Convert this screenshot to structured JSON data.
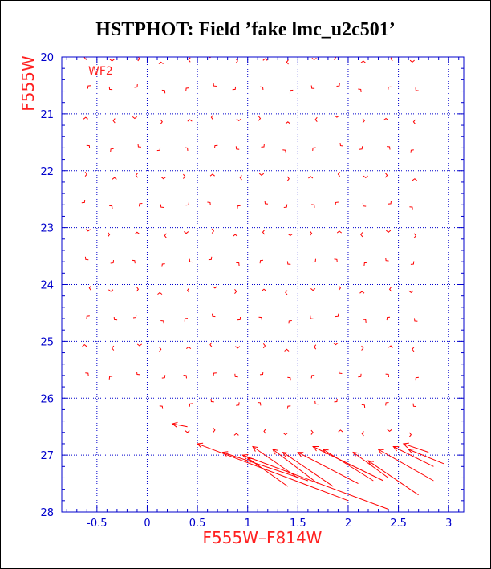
{
  "chart_data": {
    "type": "scatter",
    "title": "HSTPHOT: Field ’fake lmc_u2c501’",
    "xlabel": "F555W–F814W",
    "ylabel": "F555W",
    "panel_label": "WF2",
    "xlim": [
      -0.85,
      3.15
    ],
    "ylim": [
      28,
      20
    ],
    "x_ticks": [
      -0.5,
      0,
      0.5,
      1,
      1.5,
      2,
      2.5,
      3
    ],
    "x_tick_labels": [
      "-0.5",
      "0",
      "0.5",
      "1",
      "1.5",
      "2",
      "2.5",
      "3"
    ],
    "y_ticks": [
      20,
      21,
      22,
      23,
      24,
      25,
      26,
      27,
      28
    ],
    "y_tick_labels": [
      "20",
      "21",
      "22",
      "23",
      "24",
      "25",
      "26",
      "27",
      "28"
    ],
    "grid": true,
    "marker": "arrow",
    "colors": {
      "data": "#ff0000",
      "axes": "#0000cc",
      "grid": "#0000cc",
      "label": "#ff2020",
      "title": "#000000"
    },
    "grid_x": [
      -0.6,
      -0.35,
      -0.1,
      0.15,
      0.4,
      0.65,
      0.9,
      1.15,
      1.4,
      1.65,
      1.9,
      2.15,
      2.4,
      2.65
    ],
    "grid_y": [
      20.05,
      20.55,
      21.1,
      21.6,
      22.1,
      22.6,
      23.1,
      23.6,
      24.1,
      24.6,
      25.1,
      25.6,
      26.1,
      26.6
    ],
    "long_arrows": [
      {
        "x": 0.5,
        "y": 26.8,
        "dx": 1.5,
        "dy": 1.0
      },
      {
        "x": 0.95,
        "y": 27.0,
        "dx": 1.45,
        "dy": 0.95
      },
      {
        "x": 0.75,
        "y": 26.95,
        "dx": 0.85,
        "dy": 0.5
      },
      {
        "x": 1.0,
        "y": 27.05,
        "dx": 0.4,
        "dy": 0.5
      },
      {
        "x": 1.05,
        "y": 26.85,
        "dx": 0.45,
        "dy": 0.55
      },
      {
        "x": 1.25,
        "y": 26.9,
        "dx": 0.45,
        "dy": 0.6
      },
      {
        "x": 1.35,
        "y": 26.95,
        "dx": 0.5,
        "dy": 0.6
      },
      {
        "x": 1.5,
        "y": 26.95,
        "dx": 0.6,
        "dy": 0.55
      },
      {
        "x": 1.65,
        "y": 26.85,
        "dx": 0.7,
        "dy": 0.6
      },
      {
        "x": 1.75,
        "y": 26.9,
        "dx": 0.5,
        "dy": 0.55
      },
      {
        "x": 2.05,
        "y": 26.95,
        "dx": 0.35,
        "dy": 0.45
      },
      {
        "x": 2.2,
        "y": 27.1,
        "dx": 0.5,
        "dy": 0.6
      },
      {
        "x": 2.3,
        "y": 26.9,
        "dx": 0.55,
        "dy": 0.55
      },
      {
        "x": 2.45,
        "y": 26.85,
        "dx": 0.4,
        "dy": 0.35
      },
      {
        "x": 2.6,
        "y": 26.9,
        "dx": 0.35,
        "dy": 0.25
      },
      {
        "x": 2.55,
        "y": 26.8,
        "dx": 0.25,
        "dy": 0.15
      },
      {
        "x": 0.25,
        "y": 26.45,
        "dx": 0.15,
        "dy": 0.05
      }
    ]
  }
}
